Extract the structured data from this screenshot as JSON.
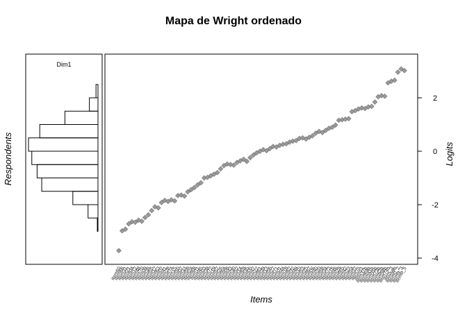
{
  "chart_data": {
    "type": "scatter",
    "title": "Mapa de Wright ordenado",
    "person_panel": {
      "label": "Dim1",
      "ylabel": "Respondents",
      "histogram": {
        "bin_width": 0.5,
        "bins": [
          {
            "from": -3.0,
            "to": -2.5,
            "count": 1
          },
          {
            "from": -2.5,
            "to": -2.0,
            "count": 15
          },
          {
            "from": -2.0,
            "to": -1.5,
            "count": 38
          },
          {
            "from": -1.5,
            "to": -1.0,
            "count": 85
          },
          {
            "from": -1.0,
            "to": -0.5,
            "count": 92
          },
          {
            "from": -0.5,
            "to": 0.0,
            "count": 100
          },
          {
            "from": 0.0,
            "to": 0.5,
            "count": 105
          },
          {
            "from": 0.5,
            "to": 1.0,
            "count": 88
          },
          {
            "from": 1.0,
            "to": 1.5,
            "count": 50
          },
          {
            "from": 1.5,
            "to": 2.0,
            "count": 13
          },
          {
            "from": 2.0,
            "to": 2.5,
            "count": 3
          }
        ]
      }
    },
    "item_panel": {
      "xlabel": "Items",
      "ylabel": "Logits",
      "ylim": [
        -4.2,
        3.6
      ],
      "yticks": [
        -4,
        -2,
        0,
        2
      ],
      "marker_color": "#9a9a9a",
      "items": [
        {
          "label": "item60",
          "y": -3.72
        },
        {
          "label": "item66",
          "y": -2.98
        },
        {
          "label": "item31",
          "y": -2.92
        },
        {
          "label": "item21",
          "y": -2.72
        },
        {
          "label": "item04",
          "y": -2.64
        },
        {
          "label": "item12",
          "y": -2.66
        },
        {
          "label": "item48",
          "y": -2.58
        },
        {
          "label": "item70",
          "y": -2.62
        },
        {
          "label": "item09",
          "y": -2.48
        },
        {
          "label": "item36",
          "y": -2.38
        },
        {
          "label": "item55",
          "y": -2.22
        },
        {
          "label": "item17",
          "y": -2.08
        },
        {
          "label": "item63",
          "y": -2.12
        },
        {
          "label": "item02",
          "y": -1.92
        },
        {
          "label": "item41",
          "y": -1.84
        },
        {
          "label": "item28",
          "y": -1.88
        },
        {
          "label": "item74",
          "y": -1.82
        },
        {
          "label": "item15",
          "y": -1.86
        },
        {
          "label": "item50",
          "y": -1.66
        },
        {
          "label": "item07",
          "y": -1.64
        },
        {
          "label": "item33",
          "y": -1.68
        },
        {
          "label": "item59",
          "y": -1.52
        },
        {
          "label": "item24",
          "y": -1.44
        },
        {
          "label": "item68",
          "y": -1.36
        },
        {
          "label": "item11",
          "y": -1.26
        },
        {
          "label": "item45",
          "y": -1.18
        },
        {
          "label": "item03",
          "y": -1.0
        },
        {
          "label": "item38",
          "y": -0.98
        },
        {
          "label": "item72",
          "y": -0.92
        },
        {
          "label": "item19",
          "y": -0.86
        },
        {
          "label": "item57",
          "y": -0.8
        },
        {
          "label": "item26",
          "y": -0.66
        },
        {
          "label": "item64",
          "y": -0.54
        },
        {
          "label": "item08",
          "y": -0.48
        },
        {
          "label": "item43",
          "y": -0.5
        },
        {
          "label": "item30",
          "y": -0.52
        },
        {
          "label": "item52",
          "y": -0.42
        },
        {
          "label": "item14",
          "y": -0.36
        },
        {
          "label": "item69",
          "y": -0.3
        },
        {
          "label": "item35",
          "y": -0.38
        },
        {
          "label": "item05",
          "y": -0.24
        },
        {
          "label": "item47",
          "y": -0.14
        },
        {
          "label": "item22",
          "y": -0.06
        },
        {
          "label": "item61",
          "y": 0.0
        },
        {
          "label": "item39",
          "y": 0.06
        },
        {
          "label": "item13",
          "y": 0.02
        },
        {
          "label": "item56",
          "y": 0.1
        },
        {
          "label": "item27",
          "y": 0.18
        },
        {
          "label": "item71",
          "y": 0.16
        },
        {
          "label": "item01",
          "y": 0.22
        },
        {
          "label": "item44",
          "y": 0.26
        },
        {
          "label": "item18",
          "y": 0.28
        },
        {
          "label": "item62",
          "y": 0.34
        },
        {
          "label": "item32",
          "y": 0.38
        },
        {
          "label": "item49",
          "y": 0.4
        },
        {
          "label": "item10",
          "y": 0.48
        },
        {
          "label": "item53",
          "y": 0.5
        },
        {
          "label": "item25",
          "y": 0.46
        },
        {
          "label": "item67",
          "y": 0.52
        },
        {
          "label": "item06",
          "y": 0.58
        },
        {
          "label": "item40",
          "y": 0.68
        },
        {
          "label": "item20",
          "y": 0.74
        },
        {
          "label": "item58",
          "y": 0.7
        },
        {
          "label": "item34",
          "y": 0.78
        },
        {
          "label": "item73",
          "y": 0.86
        },
        {
          "label": "item16",
          "y": 0.9
        },
        {
          "label": "item46",
          "y": 0.98
        },
        {
          "label": "item29",
          "y": 1.16
        },
        {
          "label": "item65",
          "y": 1.18
        },
        {
          "label": "item42",
          "y": 1.2
        },
        {
          "label": "item23",
          "y": 1.22
        },
        {
          "label": "item54",
          "y": 1.48
        },
        {
          "label": "item37",
          "y": 1.52
        },
        {
          "label": "item75",
          "y": 1.58
        },
        {
          "label": "item51",
          "y": 1.62
        },
        {
          "label": "item37b",
          "y": 1.6
        },
        {
          "label": "item69b",
          "y": 1.66
        },
        {
          "label": "item41b",
          "y": 1.68
        },
        {
          "label": "item55b",
          "y": 1.84
        },
        {
          "label": "item73b",
          "y": 2.04
        },
        {
          "label": "item62b",
          "y": 2.08
        },
        {
          "label": "item58b",
          "y": 2.06
        },
        {
          "label": "item74b",
          "y": 2.56
        },
        {
          "label": "item_3",
          "y": 2.62
        },
        {
          "label": "item59b",
          "y": 2.66
        },
        {
          "label": "item0_2",
          "y": 2.96
        },
        {
          "label": "item0_3",
          "y": 3.08
        },
        {
          "label": "item0_5",
          "y": 3.02
        }
      ]
    }
  }
}
